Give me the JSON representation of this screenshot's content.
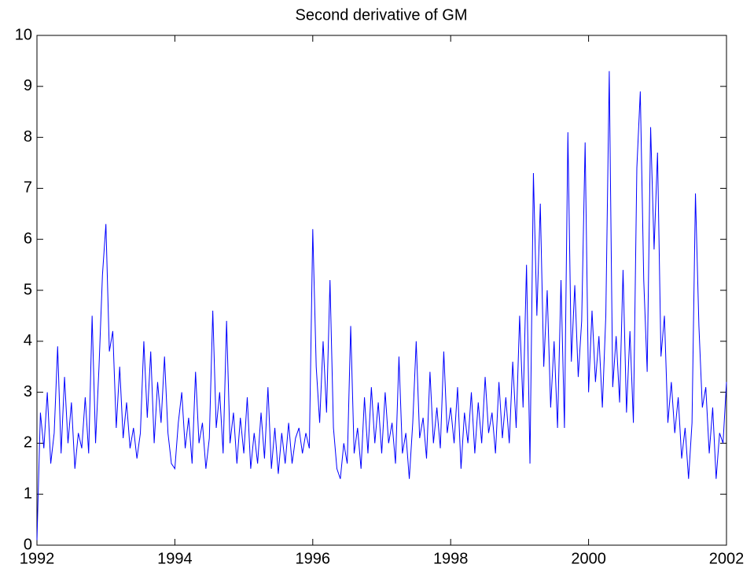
{
  "chart_data": {
    "type": "line",
    "title": "Second derivative of GM",
    "x": [
      1992.0,
      1992.05,
      1992.1,
      1992.15,
      1992.2,
      1992.25,
      1992.3,
      1992.35,
      1992.4,
      1992.45,
      1992.5,
      1992.55,
      1992.6,
      1992.65,
      1992.7,
      1992.75,
      1992.8,
      1992.85,
      1992.9,
      1992.95,
      1993.0,
      1993.05,
      1993.1,
      1993.15,
      1993.2,
      1993.25,
      1993.3,
      1993.35,
      1993.4,
      1993.45,
      1993.5,
      1993.55,
      1993.6,
      1993.65,
      1993.7,
      1993.75,
      1993.8,
      1993.85,
      1993.9,
      1993.95,
      1994.0,
      1994.05,
      1994.1,
      1994.15,
      1994.2,
      1994.25,
      1994.3,
      1994.35,
      1994.4,
      1994.45,
      1994.5,
      1994.55,
      1994.6,
      1994.65,
      1994.7,
      1994.75,
      1994.8,
      1994.85,
      1994.9,
      1994.95,
      1995.0,
      1995.05,
      1995.1,
      1995.15,
      1995.2,
      1995.25,
      1995.3,
      1995.35,
      1995.4,
      1995.45,
      1995.5,
      1995.55,
      1995.6,
      1995.65,
      1995.7,
      1995.75,
      1995.8,
      1995.85,
      1995.9,
      1995.95,
      1996.0,
      1996.05,
      1996.1,
      1996.15,
      1996.2,
      1996.25,
      1996.3,
      1996.35,
      1996.4,
      1996.45,
      1996.5,
      1996.55,
      1996.6,
      1996.65,
      1996.7,
      1996.75,
      1996.8,
      1996.85,
      1996.9,
      1996.95,
      1997.0,
      1997.05,
      1997.1,
      1997.15,
      1997.2,
      1997.25,
      1997.3,
      1997.35,
      1997.4,
      1997.45,
      1997.5,
      1997.55,
      1997.6,
      1997.65,
      1997.7,
      1997.75,
      1997.8,
      1997.85,
      1997.9,
      1997.95,
      1998.0,
      1998.05,
      1998.1,
      1998.15,
      1998.2,
      1998.25,
      1998.3,
      1998.35,
      1998.4,
      1998.45,
      1998.5,
      1998.55,
      1998.6,
      1998.65,
      1998.7,
      1998.75,
      1998.8,
      1998.85,
      1998.9,
      1998.95,
      1999.0,
      1999.05,
      1999.1,
      1999.15,
      1999.2,
      1999.25,
      1999.3,
      1999.35,
      1999.4,
      1999.45,
      1999.5,
      1999.55,
      1999.6,
      1999.65,
      1999.7,
      1999.75,
      1999.8,
      1999.85,
      1999.9,
      1999.95,
      2000.0,
      2000.05,
      2000.1,
      2000.15,
      2000.2,
      2000.25,
      2000.3,
      2000.35,
      2000.4,
      2000.45,
      2000.5,
      2000.55,
      2000.6,
      2000.65,
      2000.7,
      2000.75,
      2000.8,
      2000.85,
      2000.9,
      2000.95,
      2001.0,
      2001.05,
      2001.1,
      2001.15,
      2001.2,
      2001.25,
      2001.3,
      2001.35,
      2001.4,
      2001.45,
      2001.5,
      2001.55,
      2001.6,
      2001.65,
      2001.7,
      2001.75,
      2001.8,
      2001.85,
      2001.9,
      2001.95,
      2002.0
    ],
    "series": [
      {
        "color": "#0000ff",
        "values": [
          0.1,
          2.6,
          1.9,
          3.0,
          1.6,
          2.2,
          3.9,
          1.8,
          3.3,
          2.0,
          2.8,
          1.5,
          2.2,
          1.9,
          2.9,
          1.8,
          4.5,
          2.0,
          3.5,
          5.3,
          6.3,
          3.8,
          4.2,
          2.3,
          3.5,
          2.1,
          2.8,
          1.9,
          2.3,
          1.7,
          2.2,
          4.0,
          2.5,
          3.8,
          2.0,
          3.2,
          2.4,
          3.7,
          2.2,
          1.6,
          1.5,
          2.4,
          3.0,
          1.9,
          2.5,
          1.6,
          3.4,
          2.0,
          2.4,
          1.5,
          2.1,
          4.6,
          2.3,
          3.0,
          1.8,
          4.4,
          2.0,
          2.6,
          1.6,
          2.5,
          1.8,
          2.9,
          1.5,
          2.2,
          1.6,
          2.6,
          1.7,
          3.1,
          1.5,
          2.3,
          1.4,
          2.2,
          1.6,
          2.4,
          1.6,
          2.1,
          2.3,
          1.8,
          2.2,
          1.9,
          6.2,
          3.5,
          2.4,
          4.0,
          2.6,
          5.2,
          2.3,
          1.5,
          1.3,
          2.0,
          1.6,
          4.3,
          1.8,
          2.3,
          1.5,
          2.9,
          1.8,
          3.1,
          2.0,
          2.8,
          1.8,
          3.0,
          2.0,
          2.4,
          1.6,
          3.7,
          1.8,
          2.2,
          1.3,
          2.4,
          4.0,
          2.1,
          2.5,
          1.7,
          3.4,
          2.0,
          2.7,
          1.9,
          3.8,
          2.2,
          2.7,
          2.0,
          3.1,
          1.5,
          2.6,
          2.0,
          3.0,
          1.8,
          2.8,
          2.0,
          3.3,
          2.2,
          2.6,
          1.8,
          3.2,
          2.1,
          2.9,
          2.0,
          3.6,
          2.3,
          4.5,
          2.7,
          5.5,
          1.6,
          7.3,
          4.5,
          6.7,
          3.5,
          5.0,
          2.7,
          4.0,
          2.3,
          5.2,
          2.3,
          8.1,
          3.6,
          5.1,
          3.3,
          4.4,
          7.9,
          3.0,
          4.6,
          3.2,
          4.1,
          2.7,
          4.5,
          9.3,
          3.1,
          4.1,
          2.8,
          5.4,
          2.6,
          4.2,
          2.4,
          7.4,
          8.9,
          5.2,
          3.4,
          8.2,
          5.8,
          7.7,
          3.7,
          4.5,
          2.4,
          3.2,
          2.2,
          2.9,
          1.7,
          2.3,
          1.3,
          2.4,
          6.9,
          4.3,
          2.7,
          3.1,
          1.8,
          2.7,
          1.3,
          2.2,
          2.0,
          3.2
        ]
      }
    ],
    "xlim": [
      1992,
      2002
    ],
    "xticks": [
      1992,
      1994,
      1996,
      1998,
      2000,
      2002
    ],
    "ylim": [
      0,
      10
    ],
    "yticks": [
      0,
      1,
      2,
      3,
      4,
      5,
      6,
      7,
      8,
      9,
      10
    ]
  }
}
